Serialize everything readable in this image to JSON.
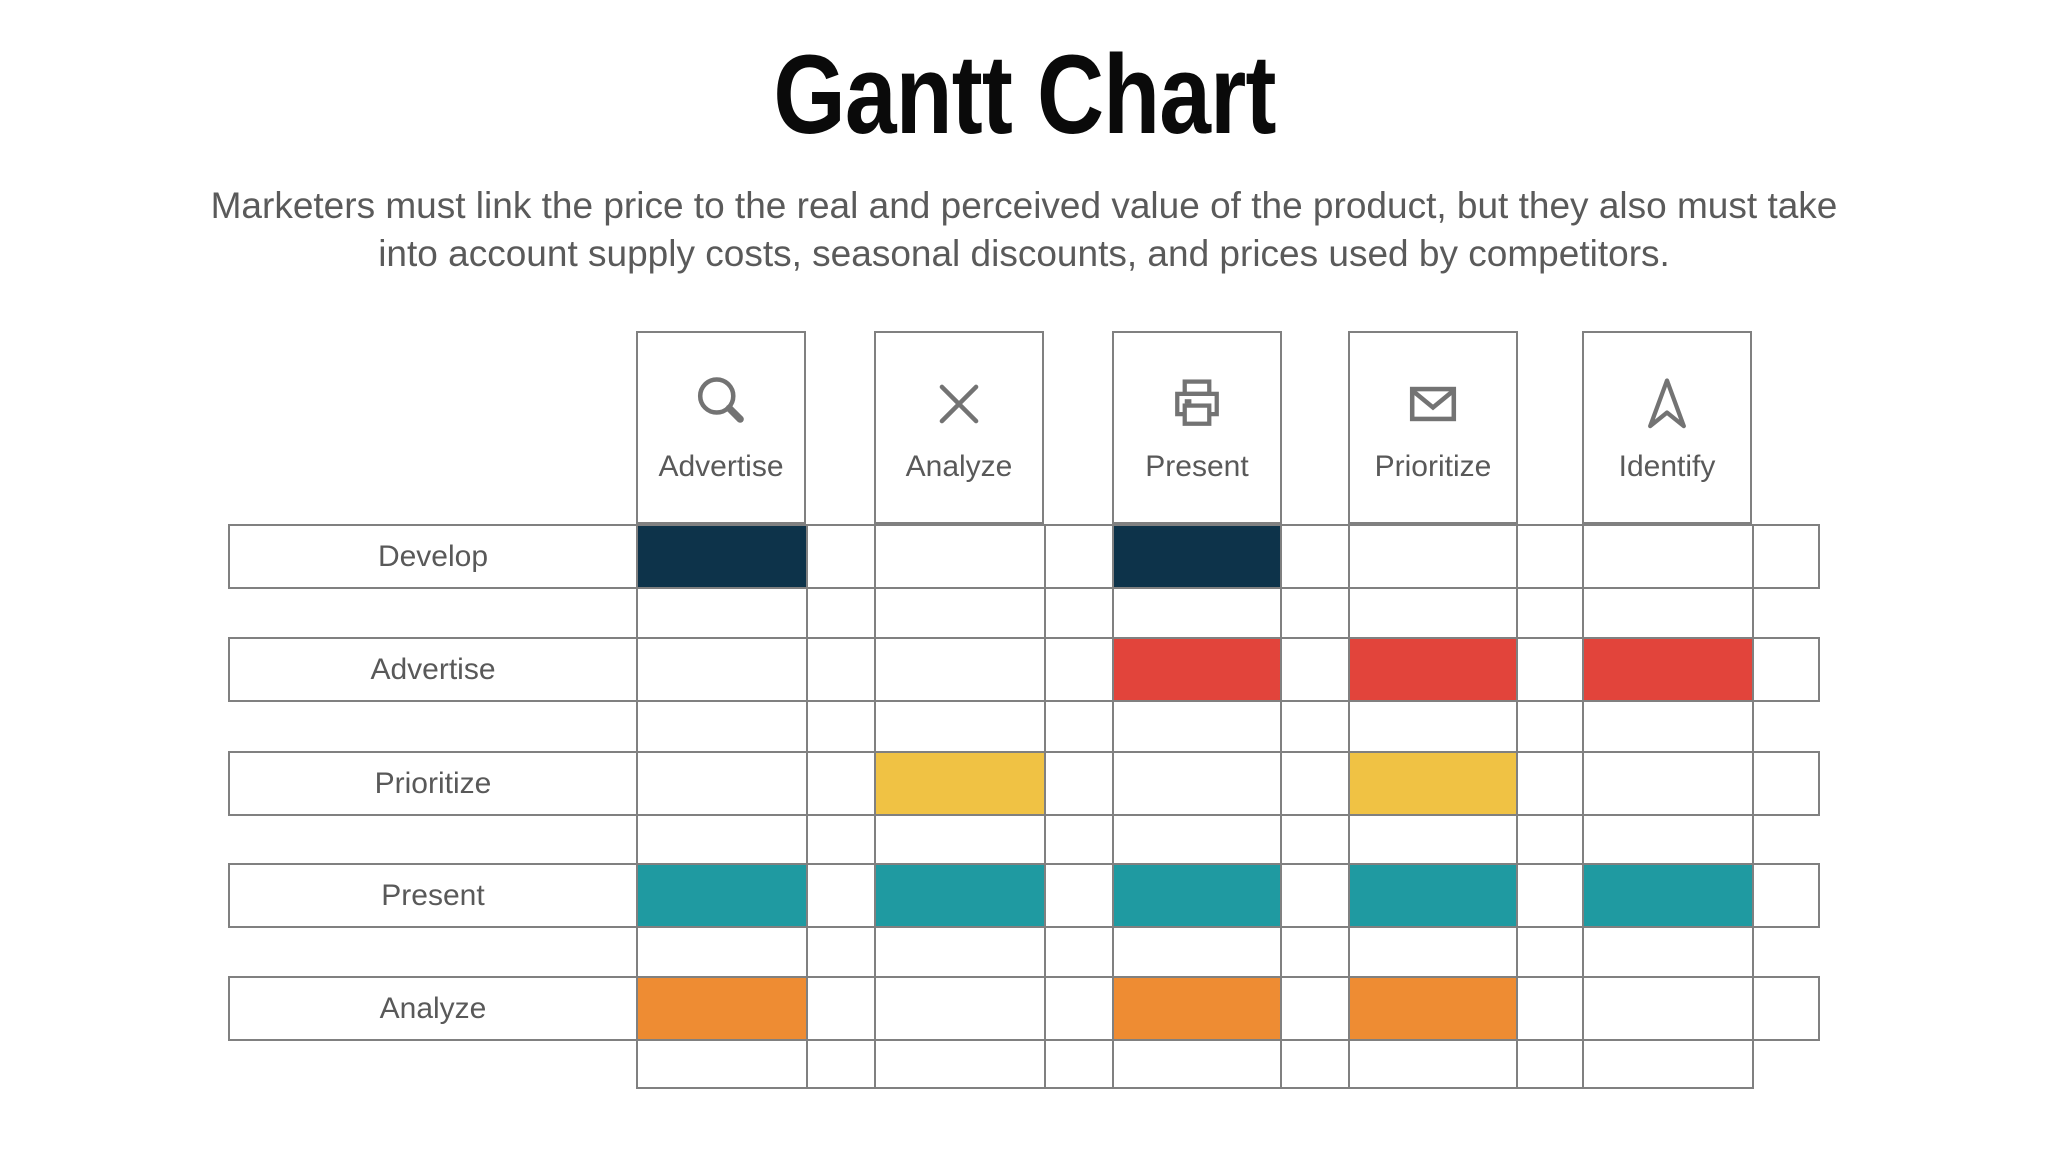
{
  "header": {
    "title": "Gantt Chart",
    "subtitle": "Marketers must link the price to the real and perceived value of the product, but they also must take\ninto account supply costs, seasonal discounts, and prices used by competitors."
  },
  "chart_data": {
    "type": "table",
    "title": "Gantt Chart",
    "description": "Gantt-style matrix: rows are activities, columns are phase headers with icons; filled cells mark scheduled phases",
    "columns": [
      {
        "label": "Advertise",
        "icon": "search-icon"
      },
      {
        "label": "Analyze",
        "icon": "x-icon"
      },
      {
        "label": "Present",
        "icon": "printer-icon"
      },
      {
        "label": "Prioritize",
        "icon": "envelope-icon"
      },
      {
        "label": "Identify",
        "icon": "navigation-arrow-icon"
      }
    ],
    "rows": [
      {
        "label": "Develop",
        "color": "#0d334a",
        "filled": [
          1,
          0,
          1,
          0,
          0
        ]
      },
      {
        "label": "Advertise",
        "color": "#e2443b",
        "filled": [
          0,
          0,
          1,
          1,
          1
        ]
      },
      {
        "label": "Prioritize",
        "color": "#f0c244",
        "filled": [
          0,
          1,
          0,
          1,
          0
        ]
      },
      {
        "label": "Present",
        "color": "#1f9aa1",
        "filled": [
          1,
          1,
          1,
          1,
          1
        ]
      },
      {
        "label": "Analyze",
        "color": "#ee8c33",
        "filled": [
          1,
          0,
          1,
          1,
          0
        ]
      }
    ],
    "legend": "none",
    "grid": "on",
    "grid_line_color": "#808080",
    "text_color": "#595959"
  }
}
